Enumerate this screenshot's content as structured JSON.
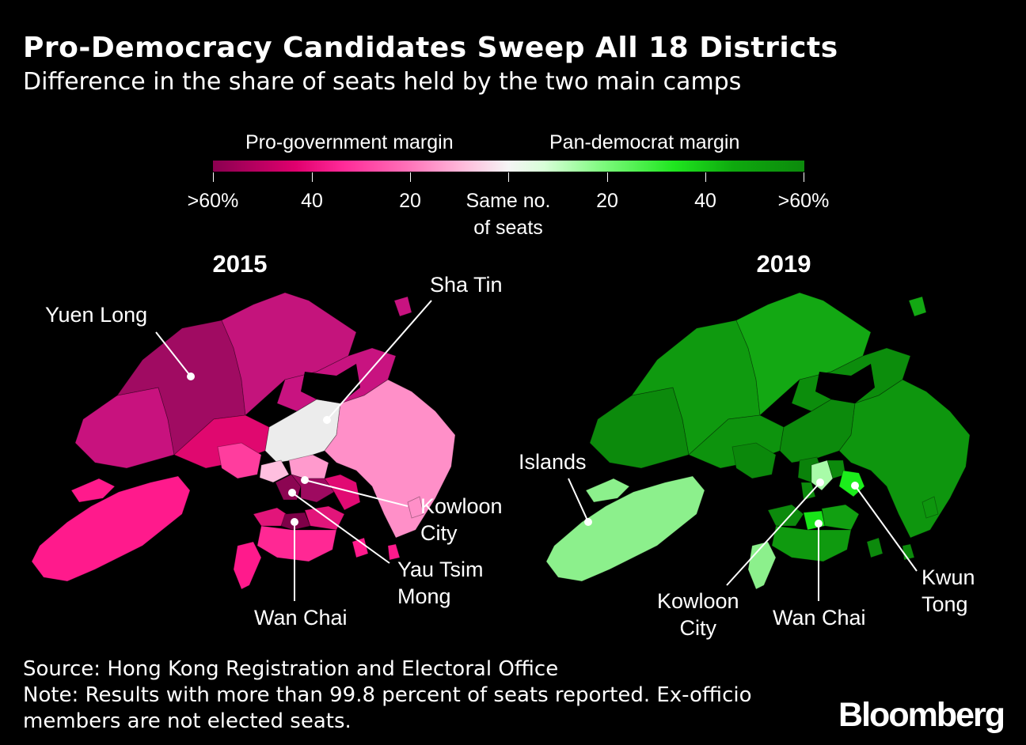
{
  "title": "Pro-Democracy Candidates Sweep All 18 Districts",
  "subtitle": "Difference in the share of seats held by the two main camps",
  "legend": {
    "left_header": "Pro-government margin",
    "right_header": "Pan-democrat margin",
    "ticks": [
      ">60%",
      "40",
      "20",
      "Same no.",
      "of seats",
      "20",
      "40",
      ">60%"
    ],
    "colors": {
      "pro_gov_max": "#8a0050",
      "neutral": "#f5f5f5",
      "pan_dem_max": "#0c8a0c"
    }
  },
  "maps": {
    "y2015": {
      "year": "2015",
      "labels": {
        "yuen_long": "Yuen Long",
        "sha_tin": "Sha Tin",
        "kowloon_city_1": "Kowloon",
        "kowloon_city_2": "City",
        "yau_tsim_mong_1": "Yau Tsim",
        "yau_tsim_mong_2": "Mong",
        "wan_chai": "Wan Chai"
      }
    },
    "y2019": {
      "year": "2019",
      "labels": {
        "islands": "Islands",
        "kowloon_city_1": "Kowloon",
        "kowloon_city_2": "City",
        "wan_chai": "Wan Chai",
        "kwun_tong_1": "Kwun",
        "kwun_tong_2": "Tong"
      }
    }
  },
  "footer": {
    "source": "Source: Hong Kong Registration and Electoral Office",
    "note_1": "Note: Results with more than 99.8 percent of seats reported. Ex-officio",
    "note_2": "members are not elected seats."
  },
  "brand": "Bloomberg"
}
